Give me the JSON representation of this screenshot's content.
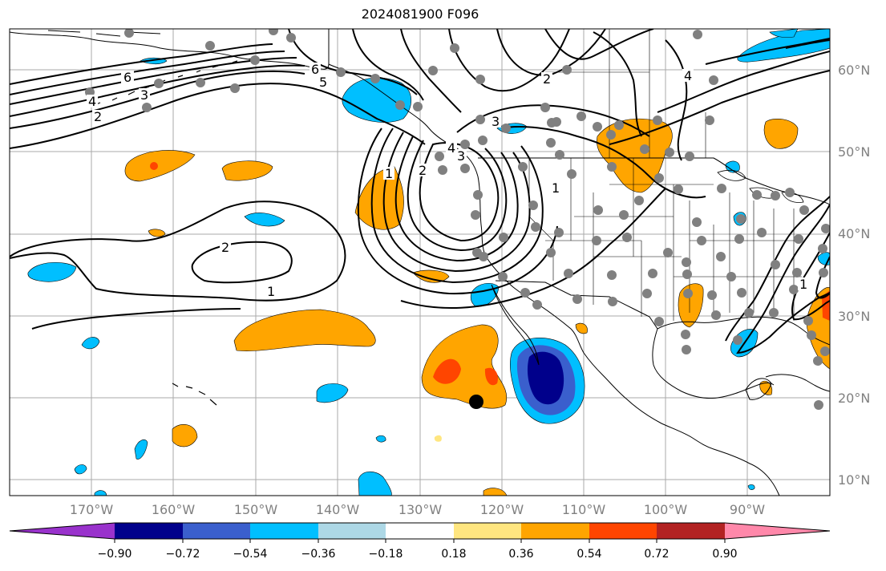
{
  "title": "2024081900 F096",
  "map": {
    "projection": "cylindrical",
    "lon_range": [
      180,
      80
    ],
    "lat_range": [
      8,
      65
    ],
    "lat_labels": [
      "10°N",
      "20°N",
      "30°N",
      "40°N",
      "50°N",
      "60°N"
    ],
    "lon_labels": [
      "170°W",
      "160°W",
      "150°W",
      "140°W",
      "130°W",
      "120°W",
      "110°W",
      "100°W",
      "90°W"
    ],
    "contour_labels": [
      "6",
      "5",
      "4",
      "3",
      "2",
      "1",
      "2",
      "1",
      "3",
      "4",
      "2",
      "1",
      "6",
      "4",
      "3",
      "2",
      "1"
    ],
    "colors": {
      "gridline": "#aaaaaa",
      "contour": "#000000",
      "coast": "#000000",
      "station_dot": "#808080",
      "marker": "#000000"
    }
  },
  "colorbar": {
    "ticks": [
      "−0.90",
      "−0.72",
      "−0.54",
      "−0.36",
      "−0.18",
      "0.18",
      "0.36",
      "0.54",
      "0.72",
      "0.90"
    ],
    "colors": [
      "#9932cc",
      "#00008b",
      "#3a5fcd",
      "#00bfff",
      "#add8e6",
      "#ffffff",
      "#ffe680",
      "#ffa500",
      "#ff4500",
      "#b22222",
      "#ff88aa"
    ]
  }
}
